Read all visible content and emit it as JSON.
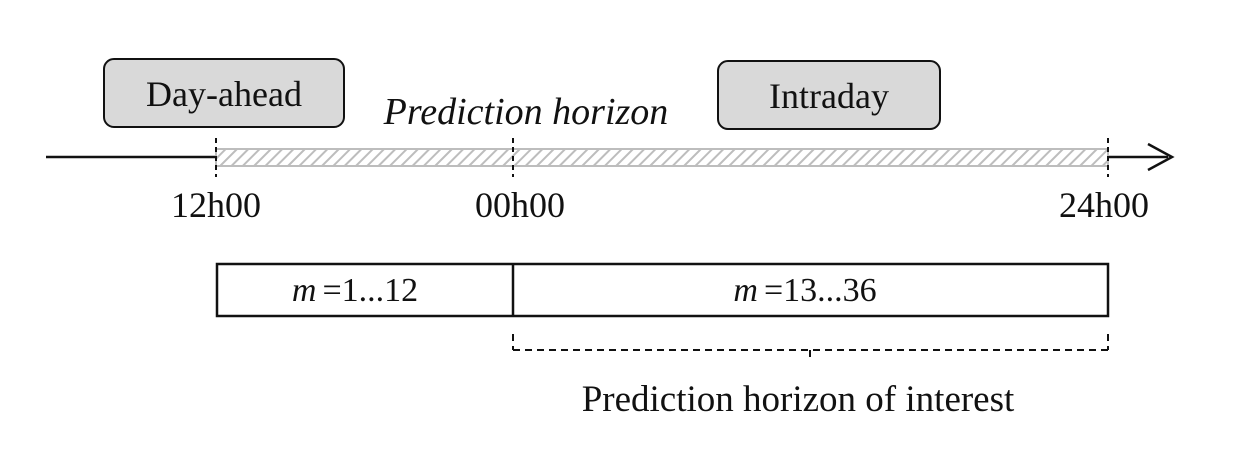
{
  "boxes": {
    "day_ahead": "Day-ahead",
    "intraday": "Intraday"
  },
  "timeline": {
    "title": "Prediction horizon",
    "ticks": [
      "12h00",
      "00h00",
      "24h00"
    ]
  },
  "segments": {
    "first": {
      "var": "m",
      "range": "=1...12"
    },
    "second": {
      "var": "m",
      "range": "=13...36"
    }
  },
  "brace_label": "Prediction horizon of interest",
  "colors": {
    "box_fill": "#d9d9d9",
    "hatch": "#bdbdbd",
    "line": "#111111"
  }
}
